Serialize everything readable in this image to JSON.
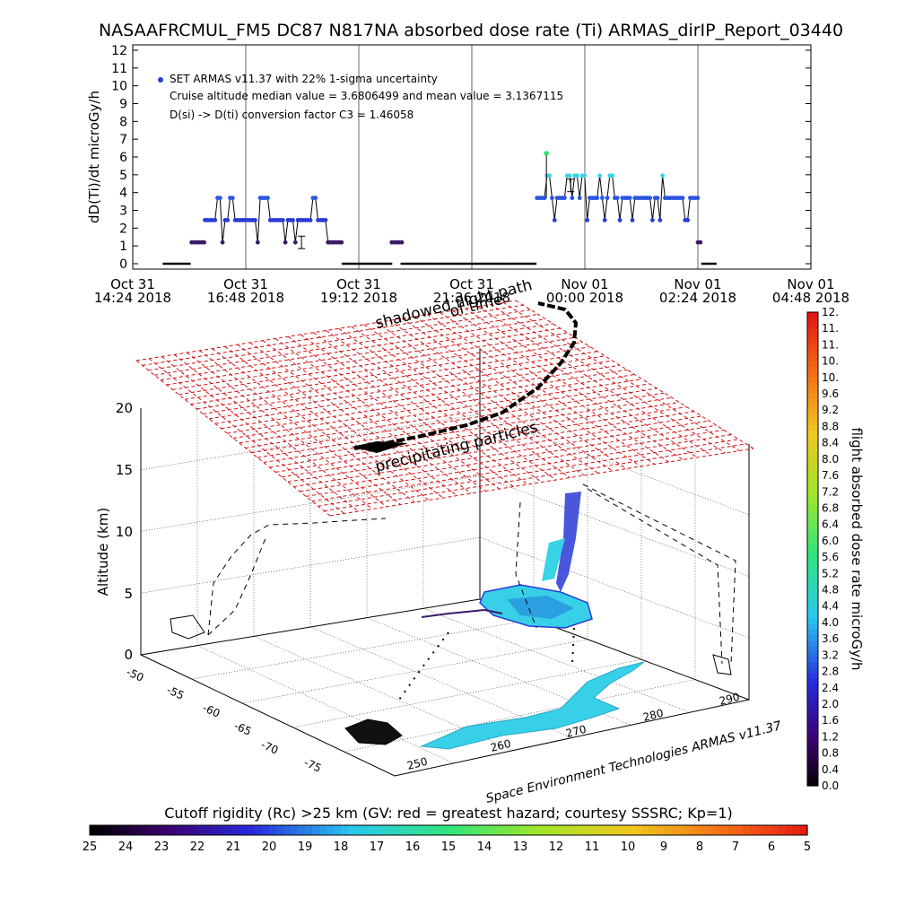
{
  "title": "NASAAFRCMUL_FM5 DC87 N817NA absorbed dose rate (Ti) ARMAS_dirIP_Report_03440",
  "chart_data": [
    {
      "type": "scatter",
      "ylabel": "dD(Ti)/dt microGy/h",
      "ylim": [
        0,
        12
      ],
      "yticks": [
        "0",
        "1",
        "2",
        "3",
        "4",
        "5",
        "6",
        "7",
        "8",
        "9",
        "10",
        "11",
        "12"
      ],
      "xlim_minutes": [
        0,
        864
      ],
      "xticks": [
        {
          "min": 0,
          "line1": "Oct 31",
          "line2": "14:24 2018"
        },
        {
          "min": 144,
          "line1": "Oct 31",
          "line2": "16:48 2018"
        },
        {
          "min": 288,
          "line1": "Oct 31",
          "line2": "19:12 2018"
        },
        {
          "min": 432,
          "line1": "Oct 31",
          "line2": "21:36 2018"
        },
        {
          "min": 576,
          "line1": "Nov 01",
          "line2": "00:00 2018"
        },
        {
          "min": 720,
          "line1": "Nov 01",
          "line2": "02:24 2018"
        },
        {
          "min": 864,
          "line1": "Nov 01",
          "line2": "04:48 2018"
        }
      ],
      "legend": [
        "SET ARMAS v11.37 with 22% 1-sigma uncertainty",
        "Cruise altitude median value = 3.6806499 and mean value = 3.1367115",
        "D(si) -> D(ti) conversion factor C3 = 1.46058"
      ],
      "series": [
        {
          "segments": [
            {
              "from": 40,
              "to": 75,
              "level": 0
            },
            {
              "from": 75,
              "to": 92,
              "level": 1.2
            },
            {
              "from": 92,
              "to": 140,
              "level": 2.45,
              "alt": 1.2,
              "peak": 3.7,
              "peaks": [
                110,
                125
              ]
            },
            {
              "from": 140,
              "to": 250,
              "level": 2.45,
              "alt": 1.2,
              "peak": 3.7,
              "peaks": [
                165,
                170,
                230
              ]
            },
            {
              "from": 250,
              "to": 268,
              "level": 1.2
            },
            {
              "from": 268,
              "to": 330,
              "level": 0
            },
            {
              "from": 330,
              "to": 343,
              "level": 1.2
            },
            {
              "from": 343,
              "to": 515,
              "level": 0
            },
            {
              "from": 515,
              "to": 720,
              "level": 3.7,
              "alt": 2.45,
              "peak": 4.95,
              "peaks": [
                530,
                555,
                565,
                575,
                595,
                610,
                675
              ]
            },
            {
              "from": 720,
              "to": 726,
              "level": 1.2
            },
            {
              "from": 726,
              "to": 745,
              "level": 0
            }
          ],
          "spike": {
            "min": 527,
            "value": 6.2
          },
          "errorbars": [
            {
              "min": 215,
              "value": 1.2
            },
            {
              "min": 558,
              "value": 4.4
            }
          ]
        }
      ]
    },
    {
      "type": "scatter3d",
      "zlabel": "Altitude (km)",
      "zticks": [
        "0",
        "5",
        "10",
        "15",
        "20"
      ],
      "ylabel_ticks": [
        "-75",
        "-70",
        "-65",
        "-60",
        "-55",
        "-50"
      ],
      "xlabel_ticks": [
        "250",
        "260",
        "270",
        "280",
        "290"
      ],
      "annotations": [
        "shadowed flight path",
        "of time",
        "precipitating particles"
      ],
      "credit": "Space Environment Technologies ARMAS v11.37"
    },
    {
      "type": "colorbar",
      "label": "flight absorbed dose rate microGy/h",
      "ticks": [
        "0.0",
        "0.4",
        "0.8",
        "1.2",
        "1.6",
        "2.0",
        "2.4",
        "2.8",
        "3.2",
        "3.6",
        "4.0",
        "4.4",
        "4.8",
        "5.2",
        "5.6",
        "6.0",
        "6.4",
        "6.8",
        "7.2",
        "7.6",
        "8.0",
        "8.4",
        "8.8",
        "9.2",
        "9.6",
        "10.",
        "10.",
        "11.",
        "11.",
        "12."
      ]
    },
    {
      "type": "colorbar",
      "label": "Cutoff rigidity (Rc) >25 km (GV: red = greatest hazard; courtesy SSSRC; Kp=1)",
      "ticks": [
        "25",
        "24",
        "23",
        "22",
        "21",
        "20",
        "19",
        "18",
        "17",
        "16",
        "15",
        "14",
        "13",
        "12",
        "11",
        "10",
        "9",
        "8",
        "7",
        "6",
        "5"
      ]
    }
  ],
  "colors": {
    "grid_red": "#d01010",
    "dose_dark": "#3a1a66",
    "dose_blue": "#2a3ad6",
    "dose_cyan": "#38d4e6",
    "dose_green": "#30e06a",
    "ground_cyan": "#38d0e8"
  }
}
